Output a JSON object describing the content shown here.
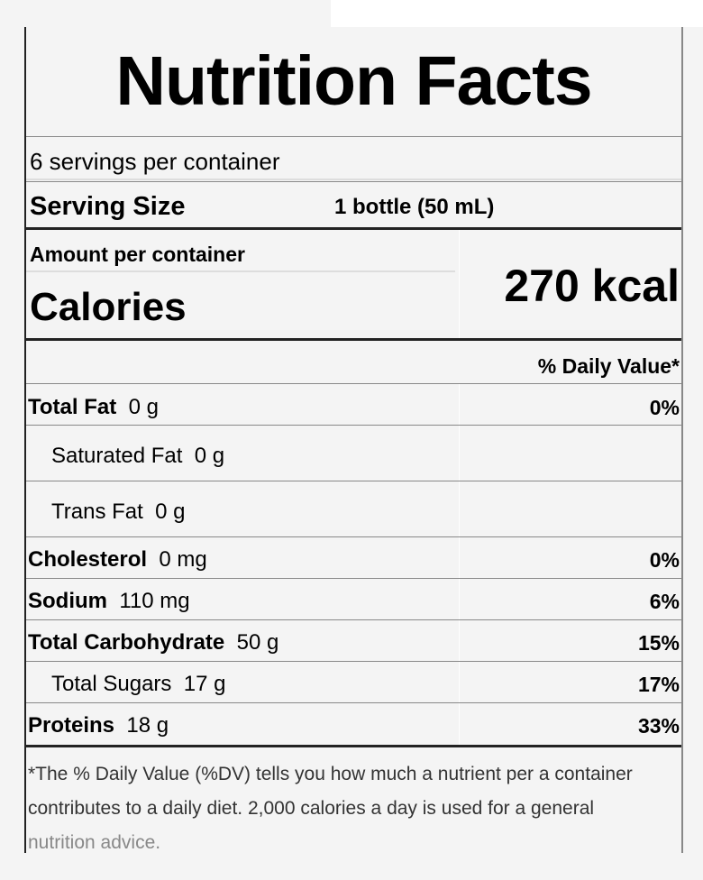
{
  "title": "Nutrition Facts",
  "servings_per_container": "6 servings per container",
  "serving_size": {
    "label": "Serving Size",
    "value": "1 bottle (50 mL)"
  },
  "amount_label": "Amount per container",
  "calories": {
    "label": "Calories",
    "value": "270 kcal"
  },
  "daily_value_header": "% Daily Value*",
  "nutrients": [
    {
      "name": "Total Fat",
      "amount": "0 g",
      "dv": "0%"
    },
    {
      "name": "Saturated Fat",
      "amount": "0 g",
      "dv": ""
    },
    {
      "name": "Trans Fat",
      "amount": "0 g",
      "dv": ""
    },
    {
      "name": "Cholesterol",
      "amount": "0 mg",
      "dv": "0%"
    },
    {
      "name": "Sodium",
      "amount": "110 mg",
      "dv": "6%"
    },
    {
      "name": "Total Carbohydrate",
      "amount": "50 g",
      "dv": "15%"
    },
    {
      "name": "Total Sugars",
      "amount": "17 g",
      "dv": "17%"
    },
    {
      "name": "Proteins",
      "amount": "18 g",
      "dv": "33%"
    }
  ],
  "footnote": {
    "line1": "*The % Daily Value (%DV) tells you how much a nutrient per a container",
    "line2": "contributes to a daily diet. 2,000 calories a day is used for a general",
    "line3": "nutrition advice."
  }
}
